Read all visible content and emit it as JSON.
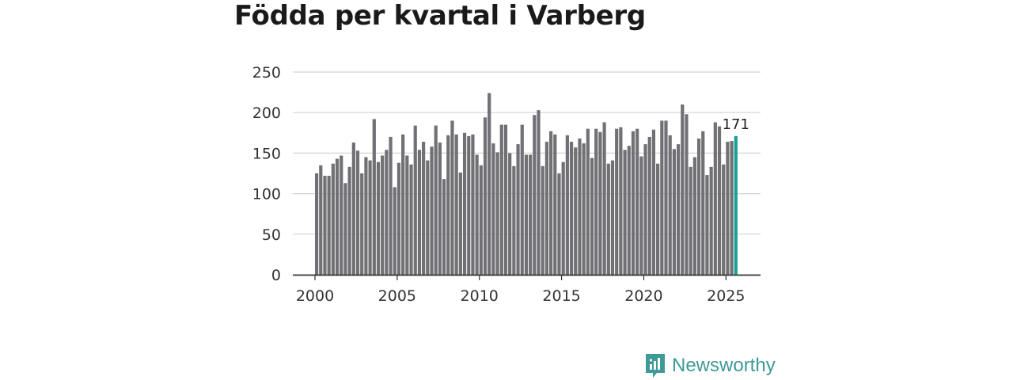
{
  "chart_data": {
    "type": "bar",
    "title": "Födda per kvartal i Varberg",
    "xlabel": "",
    "ylabel": "",
    "ylim": [
      0,
      250
    ],
    "yticks": [
      0,
      50,
      100,
      150,
      200,
      250
    ],
    "xtick_labels": [
      "2000",
      "2005",
      "2010",
      "2015",
      "2020",
      "2025"
    ],
    "grid": true,
    "start_year": 2000,
    "start_quarter": 1,
    "values": [
      125,
      135,
      122,
      122,
      137,
      143,
      147,
      113,
      133,
      163,
      153,
      125,
      145,
      141,
      192,
      139,
      147,
      154,
      170,
      108,
      138,
      173,
      147,
      136,
      184,
      154,
      164,
      141,
      158,
      184,
      163,
      118,
      172,
      190,
      173,
      126,
      175,
      171,
      173,
      148,
      135,
      194,
      224,
      162,
      151,
      185,
      185,
      150,
      134,
      161,
      185,
      148,
      148,
      197,
      203,
      134,
      164,
      177,
      173,
      125,
      139,
      172,
      164,
      157,
      168,
      162,
      180,
      144,
      180,
      176,
      188,
      137,
      141,
      180,
      182,
      154,
      159,
      177,
      180,
      146,
      161,
      170,
      179,
      137,
      190,
      190,
      172,
      155,
      161,
      210,
      198,
      133,
      145,
      168,
      177,
      123,
      133,
      188,
      183,
      136,
      164,
      165,
      171
    ],
    "highlight_label": "171",
    "bar_color": "#717075",
    "highlight_color": "#16a09a"
  },
  "branding": {
    "logo_text": "Newsworthy",
    "logo_color": "#3d9a96"
  }
}
